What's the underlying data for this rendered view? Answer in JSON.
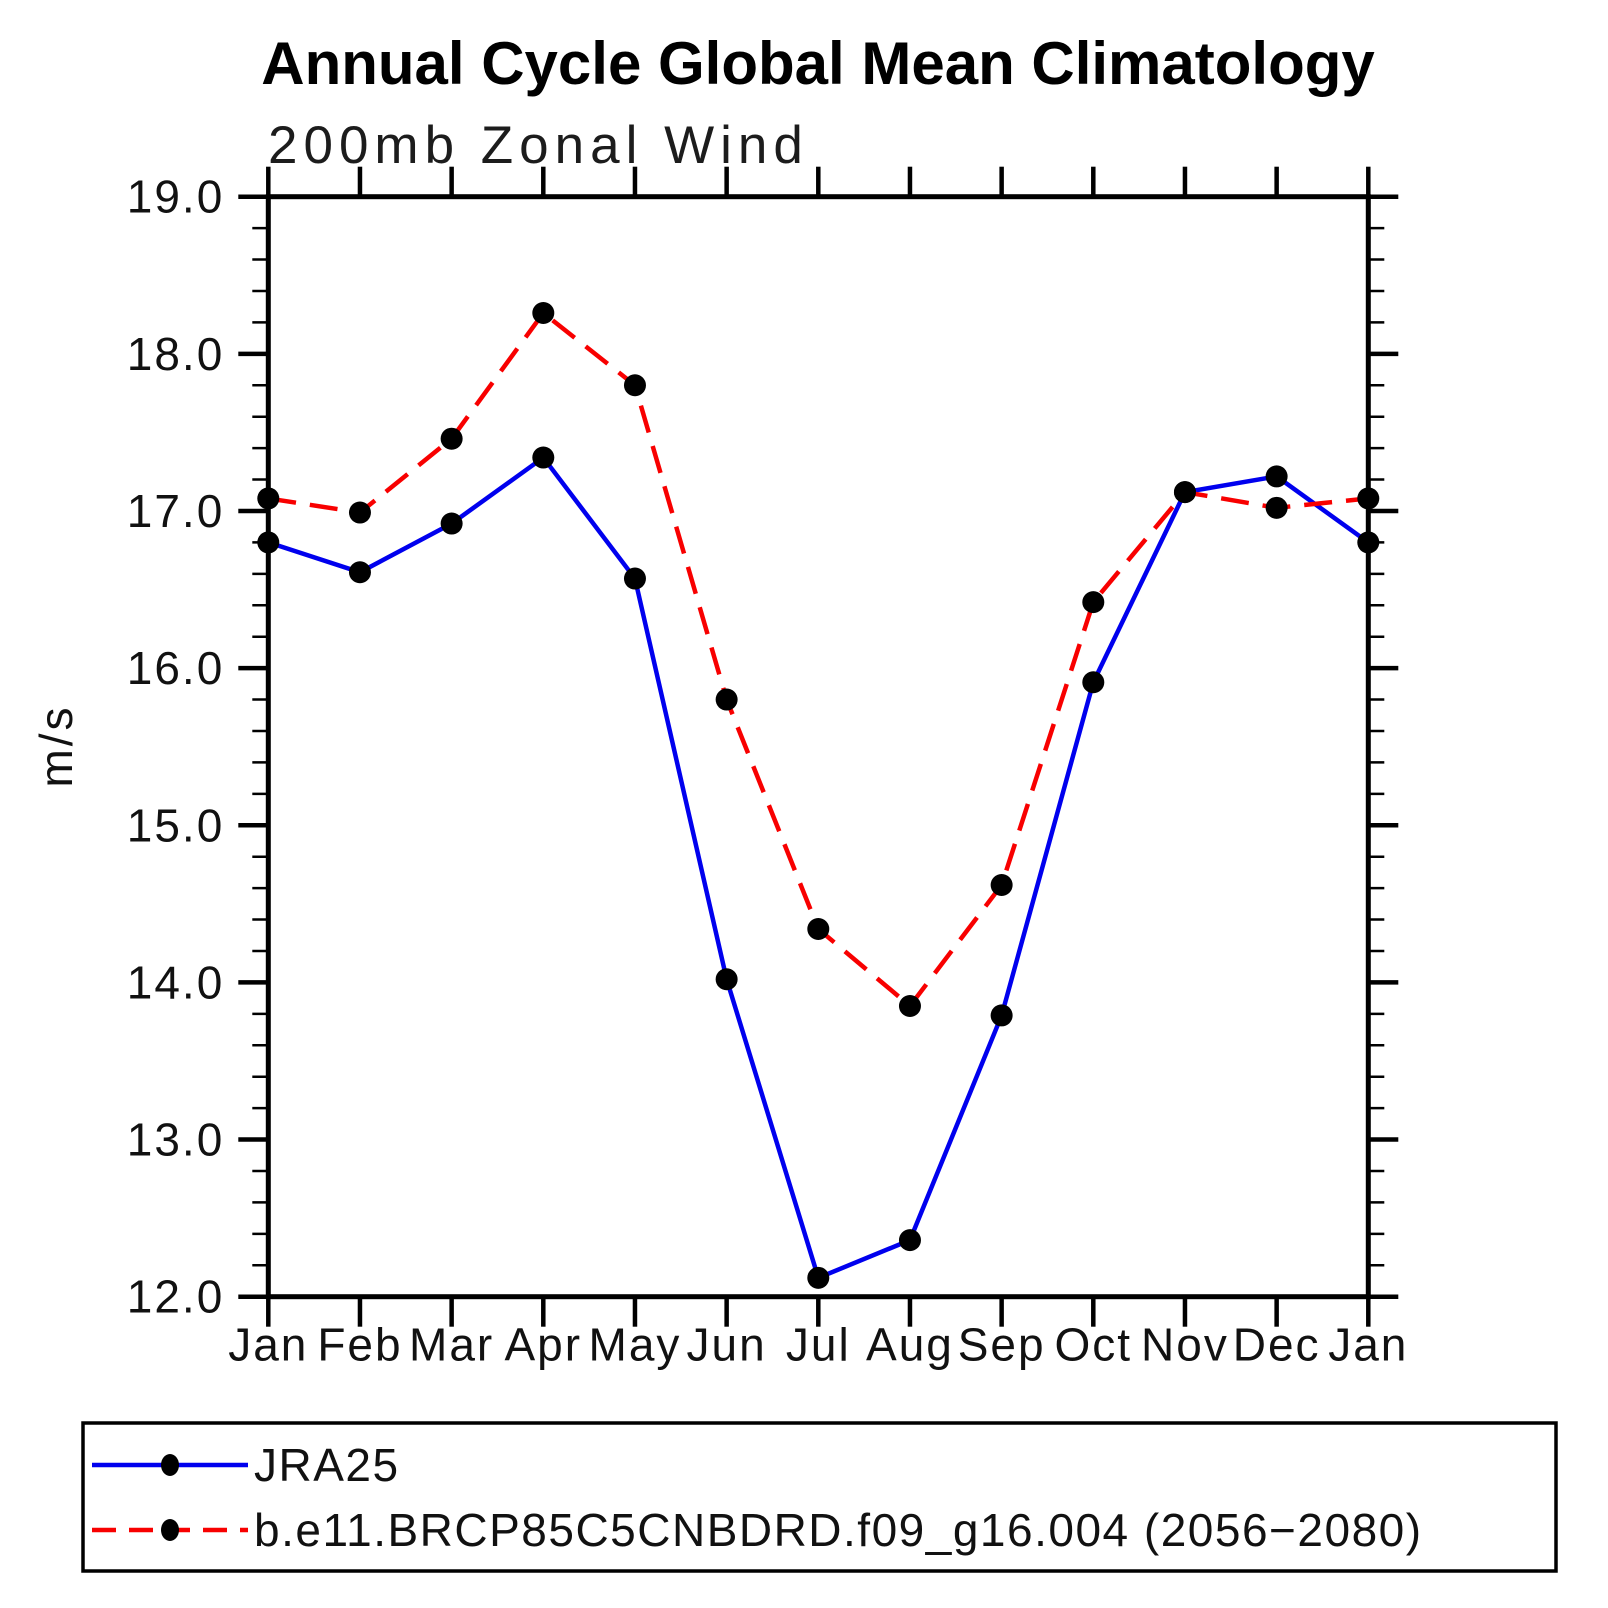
{
  "page": {
    "background": "#ffffff"
  },
  "chart_data": {
    "type": "line",
    "title": "Annual Cycle Global Mean Climatology",
    "subtitle": "200mb Zonal Wind",
    "ylabel": "m/s",
    "ylim": [
      12.0,
      19.0
    ],
    "ytick_major": 1.0,
    "ytick_minor": 0.2,
    "grid": false,
    "legend_position": "bottom-left",
    "categories": [
      "Jan",
      "Feb",
      "Mar",
      "Apr",
      "May",
      "Jun",
      "Jul",
      "Aug",
      "Sep",
      "Oct",
      "Nov",
      "Dec",
      "Jan"
    ],
    "series": [
      {
        "name": "JRA25",
        "color": "#0000EE",
        "line_style": "solid",
        "values": [
          16.8,
          16.61,
          16.92,
          17.34,
          16.57,
          14.02,
          12.12,
          12.36,
          13.79,
          15.91,
          17.12,
          17.22,
          16.8
        ]
      },
      {
        "name": "b.e11.BRCP85C5CNBDRD.f09_g16.004 (2056−2080)",
        "color": "#F80000",
        "line_style": "dashed",
        "values": [
          17.08,
          16.99,
          17.46,
          18.26,
          17.8,
          15.8,
          14.34,
          13.85,
          14.62,
          16.42,
          17.12,
          17.02,
          17.08
        ]
      }
    ],
    "marker": {
      "shape": "circle",
      "color": "#000000"
    }
  }
}
